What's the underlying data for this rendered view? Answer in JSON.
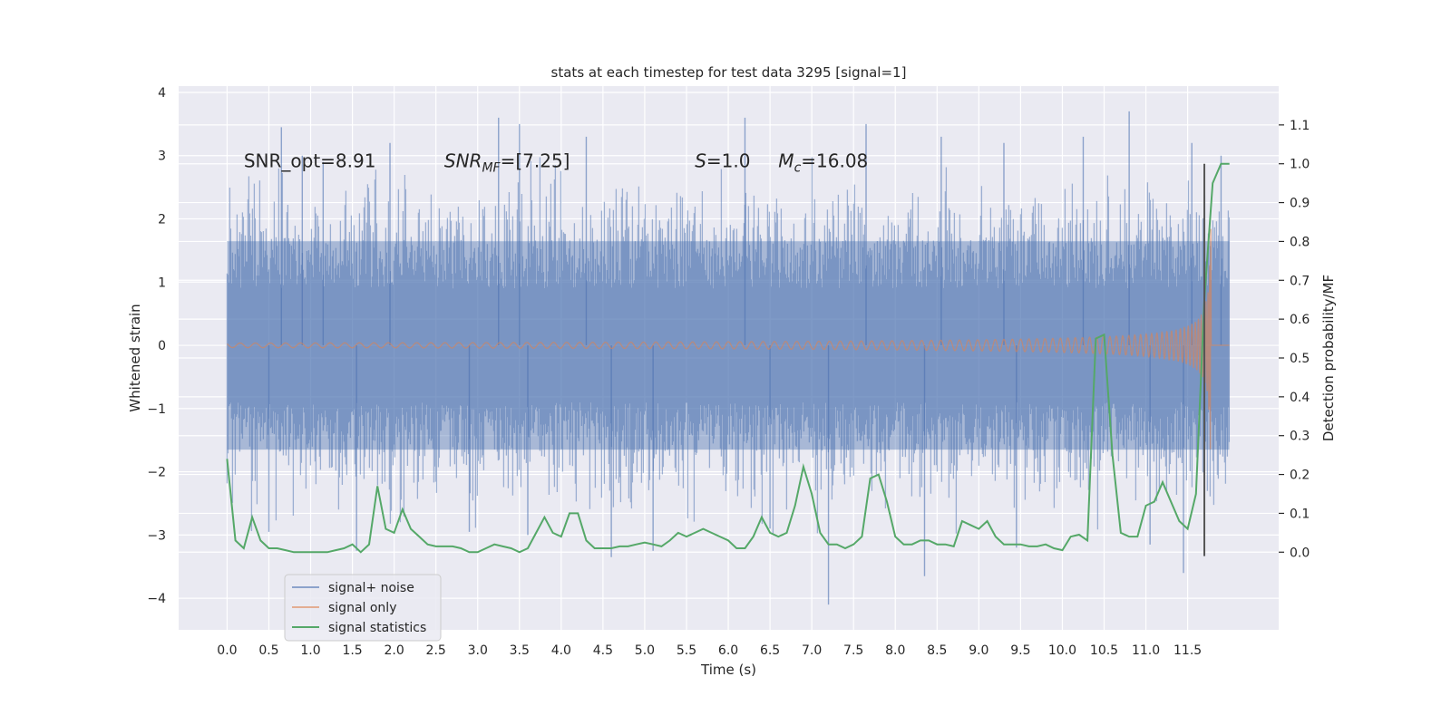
{
  "chart_data": {
    "type": "line",
    "title": "stats at each timestep for test data 3295 [signal=1]",
    "xlabel": "Time (s)",
    "ylabel_left": "Whitened strain",
    "ylabel_right": "Detection probability/MF",
    "xlim": [
      -0.58,
      12.59
    ],
    "ylim_left": [
      -4.5,
      4.1
    ],
    "ylim_right": [
      -0.2,
      1.2
    ],
    "x_ticks": [
      0.0,
      0.5,
      1.0,
      1.5,
      2.0,
      2.5,
      3.0,
      3.5,
      4.0,
      4.5,
      5.0,
      5.5,
      6.0,
      6.5,
      7.0,
      7.5,
      8.0,
      8.5,
      9.0,
      9.5,
      10.0,
      10.5,
      11.0,
      11.5
    ],
    "x_tick_labels": [
      "0.0",
      "0.5",
      "1.0",
      "1.5",
      "2.0",
      "2.5",
      "3.0",
      "3.5",
      "4.0",
      "4.5",
      "5.0",
      "5.5",
      "6.0",
      "6.5",
      "7.0",
      "7.5",
      "8.0",
      "8.5",
      "9.0",
      "9.5",
      "10.0",
      "10.5",
      "11.0",
      "11.5"
    ],
    "y_left_ticks": [
      -4,
      -3,
      -2,
      -1,
      0,
      1,
      2,
      3,
      4
    ],
    "y_left_tick_labels": [
      "−4",
      "−3",
      "−2",
      "−1",
      "0",
      "1",
      "2",
      "3",
      "4"
    ],
    "y_right_ticks": [
      0.0,
      0.1,
      0.2,
      0.3,
      0.4,
      0.5,
      0.6,
      0.7,
      0.8,
      0.9,
      1.0,
      1.1
    ],
    "y_right_tick_labels": [
      "0.0",
      "0.1",
      "0.2",
      "0.3",
      "0.4",
      "0.5",
      "0.6",
      "0.7",
      "0.8",
      "0.9",
      "1.0",
      "1.1"
    ],
    "grid": true,
    "legend_position": "lower-left",
    "annotations": [
      {
        "text": "SNR_opt=8.91",
        "x": 0.2,
        "y": 2.92
      },
      {
        "text": "SNR",
        "sub": "MF",
        "rest": "=[7.25]",
        "italic": true,
        "x": 2.6,
        "y": 2.92
      },
      {
        "text": "S",
        "rest": "=1.0",
        "italic": true,
        "x": 5.6,
        "y": 2.92
      },
      {
        "text": "M",
        "sub": "c",
        "rest": "=16.08",
        "italic": true,
        "x": 6.6,
        "y": 2.92
      }
    ],
    "marker_line": {
      "x": 11.7,
      "y0": -0.01,
      "y1": 1.0,
      "color": "#555555"
    },
    "series": [
      {
        "name": "signal+ noise",
        "axis": "left",
        "color": "#4c72b0",
        "kind": "noise-band",
        "x_range": [
          0.0,
          11.999
        ],
        "core_amplitude": 1.65,
        "peak_amplitude": 3.5,
        "spikes": [
          {
            "x": 0.65,
            "y": 3.45
          },
          {
            "x": 0.9,
            "y": 3.0
          },
          {
            "x": 1.15,
            "y": 2.9
          },
          {
            "x": 1.95,
            "y": 3.2
          },
          {
            "x": 3.25,
            "y": 3.6
          },
          {
            "x": 3.5,
            "y": 3.5
          },
          {
            "x": 4.3,
            "y": 3.3
          },
          {
            "x": 6.2,
            "y": 3.6
          },
          {
            "x": 7.65,
            "y": 3.5
          },
          {
            "x": 8.55,
            "y": 3.3
          },
          {
            "x": 9.3,
            "y": 3.2
          },
          {
            "x": 10.25,
            "y": 3.3
          },
          {
            "x": 10.8,
            "y": 3.7
          },
          {
            "x": 11.55,
            "y": 3.2
          },
          {
            "x": 11.9,
            "y": 3.0
          },
          {
            "x": 4.6,
            "y": -3.35
          },
          {
            "x": 7.2,
            "y": -4.1
          },
          {
            "x": 8.35,
            "y": -3.65
          },
          {
            "x": 11.45,
            "y": -3.6
          },
          {
            "x": 5.1,
            "y": -3.25
          },
          {
            "x": 9.45,
            "y": -3.2
          },
          {
            "x": 11.05,
            "y": -3.15
          },
          {
            "x": 2.9,
            "y": -2.95
          },
          {
            "x": 0.5,
            "y": -2.95
          },
          {
            "x": 3.6,
            "y": -3.0
          },
          {
            "x": 6.5,
            "y": -2.9
          },
          {
            "x": 1.55,
            "y": -3.25
          }
        ]
      },
      {
        "name": "signal only",
        "axis": "left",
        "color": "#dd8452",
        "kind": "chirp",
        "x_range": [
          0.0,
          11.999
        ],
        "merger_time": 11.78,
        "peak_amplitude": 1.95
      },
      {
        "name": "signal statistics",
        "axis": "right",
        "color": "#55a868",
        "kind": "line",
        "x": [
          0.0,
          0.1,
          0.2,
          0.3,
          0.4,
          0.5,
          0.6,
          0.7,
          0.8,
          0.9,
          1.0,
          1.1,
          1.2,
          1.3,
          1.4,
          1.5,
          1.6,
          1.7,
          1.8,
          1.9,
          2.0,
          2.1,
          2.2,
          2.3,
          2.4,
          2.5,
          2.6,
          2.7,
          2.8,
          2.9,
          3.0,
          3.1,
          3.2,
          3.3,
          3.4,
          3.5,
          3.6,
          3.7,
          3.8,
          3.9,
          4.0,
          4.1,
          4.2,
          4.3,
          4.4,
          4.5,
          4.6,
          4.7,
          4.8,
          4.9,
          5.0,
          5.1,
          5.2,
          5.3,
          5.4,
          5.5,
          5.6,
          5.7,
          5.8,
          5.9,
          6.0,
          6.1,
          6.2,
          6.3,
          6.4,
          6.5,
          6.6,
          6.7,
          6.8,
          6.9,
          7.0,
          7.1,
          7.2,
          7.3,
          7.4,
          7.5,
          7.6,
          7.7,
          7.8,
          7.9,
          8.0,
          8.1,
          8.2,
          8.3,
          8.4,
          8.5,
          8.6,
          8.7,
          8.8,
          8.9,
          9.0,
          9.1,
          9.2,
          9.3,
          9.4,
          9.5,
          9.6,
          9.7,
          9.8,
          9.9,
          10.0,
          10.1,
          10.2,
          10.3,
          10.4,
          10.5,
          10.6,
          10.7,
          10.8,
          10.9,
          11.0,
          11.1,
          11.2,
          11.3,
          11.4,
          11.5,
          11.6,
          11.7,
          11.8,
          11.9,
          12.0
        ],
        "y": [
          0.24,
          0.03,
          0.01,
          0.09,
          0.03,
          0.01,
          0.01,
          0.005,
          0.0,
          0.0,
          0.0,
          0.0,
          0.0,
          0.005,
          0.01,
          0.02,
          0.0,
          0.02,
          0.17,
          0.06,
          0.05,
          0.11,
          0.06,
          0.04,
          0.02,
          0.015,
          0.015,
          0.015,
          0.01,
          0.0,
          0.0,
          0.01,
          0.02,
          0.015,
          0.01,
          0.0,
          0.01,
          0.05,
          0.09,
          0.05,
          0.04,
          0.1,
          0.1,
          0.03,
          0.01,
          0.01,
          0.01,
          0.015,
          0.015,
          0.02,
          0.025,
          0.02,
          0.015,
          0.03,
          0.05,
          0.04,
          0.05,
          0.06,
          0.05,
          0.04,
          0.03,
          0.01,
          0.01,
          0.04,
          0.09,
          0.05,
          0.04,
          0.05,
          0.12,
          0.22,
          0.15,
          0.05,
          0.02,
          0.02,
          0.01,
          0.02,
          0.04,
          0.19,
          0.2,
          0.13,
          0.04,
          0.02,
          0.02,
          0.03,
          0.03,
          0.02,
          0.02,
          0.015,
          0.08,
          0.07,
          0.06,
          0.08,
          0.04,
          0.02,
          0.02,
          0.02,
          0.015,
          0.015,
          0.02,
          0.01,
          0.005,
          0.04,
          0.045,
          0.03,
          0.55,
          0.56,
          0.25,
          0.05,
          0.04,
          0.04,
          0.12,
          0.13,
          0.18,
          0.13,
          0.08,
          0.06,
          0.15,
          0.65,
          0.95,
          1.0,
          1.0
        ]
      }
    ]
  }
}
